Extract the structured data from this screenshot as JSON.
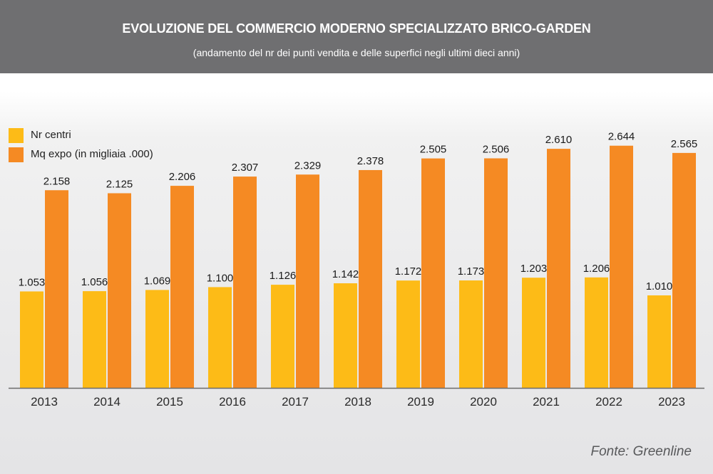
{
  "header": {
    "title": "EVOLUZIONE DEL COMMERCIO MODERNO SPECIALIZZATO BRICO-GARDEN",
    "subtitle": "(andamento del nr dei punti vendita e delle superfici negli ultimi dieci anni)"
  },
  "source": "Fonte: Greenline",
  "colors": {
    "header_bg": "#6f6f71",
    "nr_centri": "#fdbb17",
    "mq_expo": "#f58a23"
  },
  "chart_data": {
    "type": "bar",
    "categories": [
      "2013",
      "2014",
      "2015",
      "2016",
      "2017",
      "2018",
      "2019",
      "2020",
      "2021",
      "2022",
      "2023"
    ],
    "series": [
      {
        "name": "Nr centri",
        "values": [
          1053,
          1056,
          1069,
          1100,
          1126,
          1142,
          1172,
          1173,
          1203,
          1206,
          1010
        ],
        "labels": [
          "1.053",
          "1.056",
          "1.069",
          "1.100",
          "1.126",
          "1.142",
          "1.172",
          "1.173",
          "1.203",
          "1.206",
          "1.010"
        ],
        "color": "#fdbb17"
      },
      {
        "name": "Mq expo (in migliaia .000)",
        "values": [
          2158,
          2125,
          2206,
          2307,
          2329,
          2378,
          2505,
          2506,
          2610,
          2644,
          2565
        ],
        "labels": [
          "2.158",
          "2.125",
          "2.206",
          "2.307",
          "2.329",
          "2.378",
          "2.505",
          "2.506",
          "2.610",
          "2.644",
          "2.565"
        ],
        "color": "#f58a23"
      }
    ],
    "ylim": [
      0,
      2700
    ],
    "grid": false,
    "legend_position": "top-left"
  }
}
